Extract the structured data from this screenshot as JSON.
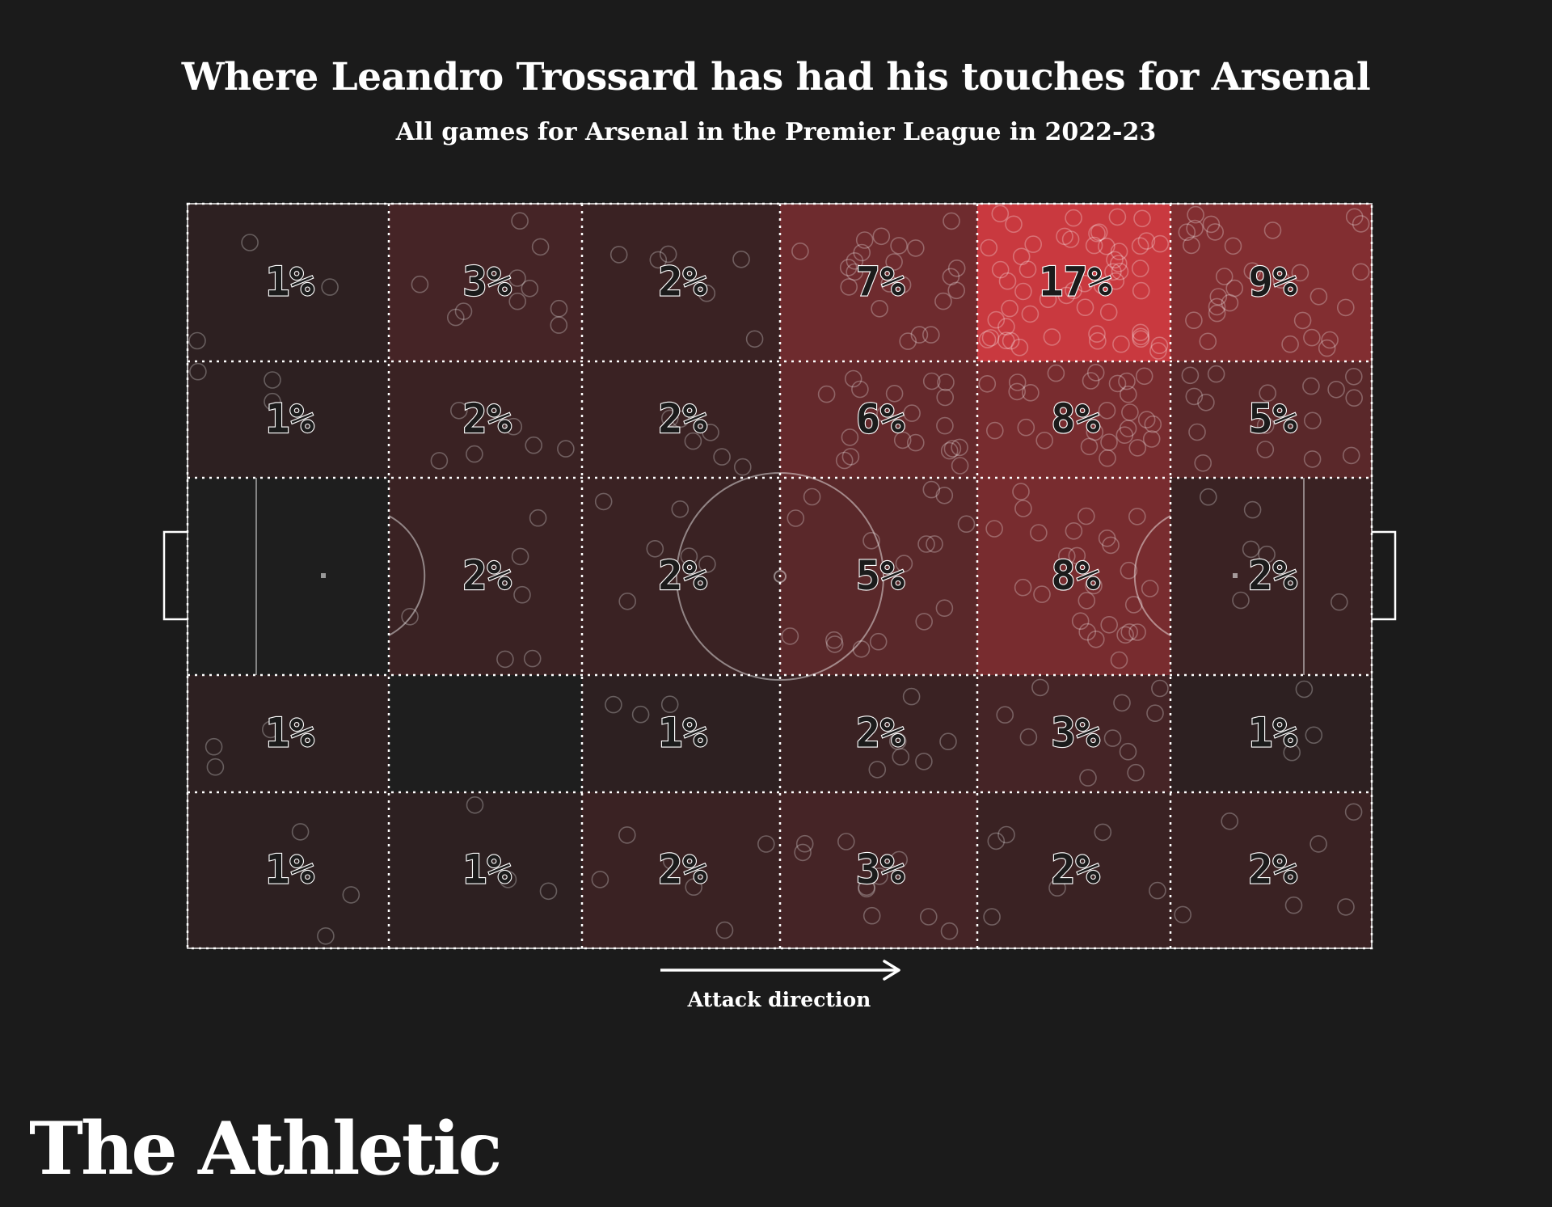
{
  "title": "Where Leandro Trossard has had his touches for Arsenal",
  "subtitle": "All games for Arsenal in the Premier League in 2022-23",
  "attack_label": "Attack direction",
  "brand": "The Athletic",
  "colors": {
    "background": "#1b1b1b",
    "accent_red": "#c9393f",
    "lines": "#ffffff"
  },
  "chart_data": {
    "type": "heatmap",
    "title": "Where Leandro Trossard has had his touches for Arsenal",
    "subtitle": "All games for Arsenal in the Premier League in 2022-23",
    "unit": "% of touches",
    "columns": 6,
    "rows": 5,
    "cells": [
      {
        "row": 0,
        "col": 0,
        "value": 1,
        "label": "1%"
      },
      {
        "row": 0,
        "col": 1,
        "value": 3,
        "label": "3%"
      },
      {
        "row": 0,
        "col": 2,
        "value": 2,
        "label": "2%"
      },
      {
        "row": 0,
        "col": 3,
        "value": 7,
        "label": "7%"
      },
      {
        "row": 0,
        "col": 4,
        "value": 17,
        "label": "17%"
      },
      {
        "row": 0,
        "col": 5,
        "value": 9,
        "label": "9%"
      },
      {
        "row": 1,
        "col": 0,
        "value": 1,
        "label": "1%"
      },
      {
        "row": 1,
        "col": 1,
        "value": 2,
        "label": "2%"
      },
      {
        "row": 1,
        "col": 2,
        "value": 2,
        "label": "2%"
      },
      {
        "row": 1,
        "col": 3,
        "value": 6,
        "label": "6%"
      },
      {
        "row": 1,
        "col": 4,
        "value": 8,
        "label": "8%"
      },
      {
        "row": 1,
        "col": 5,
        "value": 5,
        "label": "5%"
      },
      {
        "row": 2,
        "col": 0,
        "value": 0,
        "label": ""
      },
      {
        "row": 2,
        "col": 1,
        "value": 2,
        "label": "2%"
      },
      {
        "row": 2,
        "col": 2,
        "value": 2,
        "label": "2%"
      },
      {
        "row": 2,
        "col": 3,
        "value": 5,
        "label": "5%"
      },
      {
        "row": 2,
        "col": 4,
        "value": 8,
        "label": "8%"
      },
      {
        "row": 2,
        "col": 5,
        "value": 2,
        "label": "2%"
      },
      {
        "row": 3,
        "col": 0,
        "value": 1,
        "label": "1%"
      },
      {
        "row": 3,
        "col": 1,
        "value": 0,
        "label": ""
      },
      {
        "row": 3,
        "col": 2,
        "value": 1,
        "label": "1%"
      },
      {
        "row": 3,
        "col": 3,
        "value": 2,
        "label": "2%"
      },
      {
        "row": 3,
        "col": 4,
        "value": 3,
        "label": "3%"
      },
      {
        "row": 3,
        "col": 5,
        "value": 1,
        "label": "1%"
      },
      {
        "row": 4,
        "col": 0,
        "value": 1,
        "label": "1%"
      },
      {
        "row": 4,
        "col": 1,
        "value": 1,
        "label": "1%"
      },
      {
        "row": 4,
        "col": 2,
        "value": 2,
        "label": "2%"
      },
      {
        "row": 4,
        "col": 3,
        "value": 3,
        "label": "3%"
      },
      {
        "row": 4,
        "col": 4,
        "value": 2,
        "label": "2%"
      },
      {
        "row": 4,
        "col": 5,
        "value": 2,
        "label": "2%"
      }
    ],
    "max_value": 17
  }
}
